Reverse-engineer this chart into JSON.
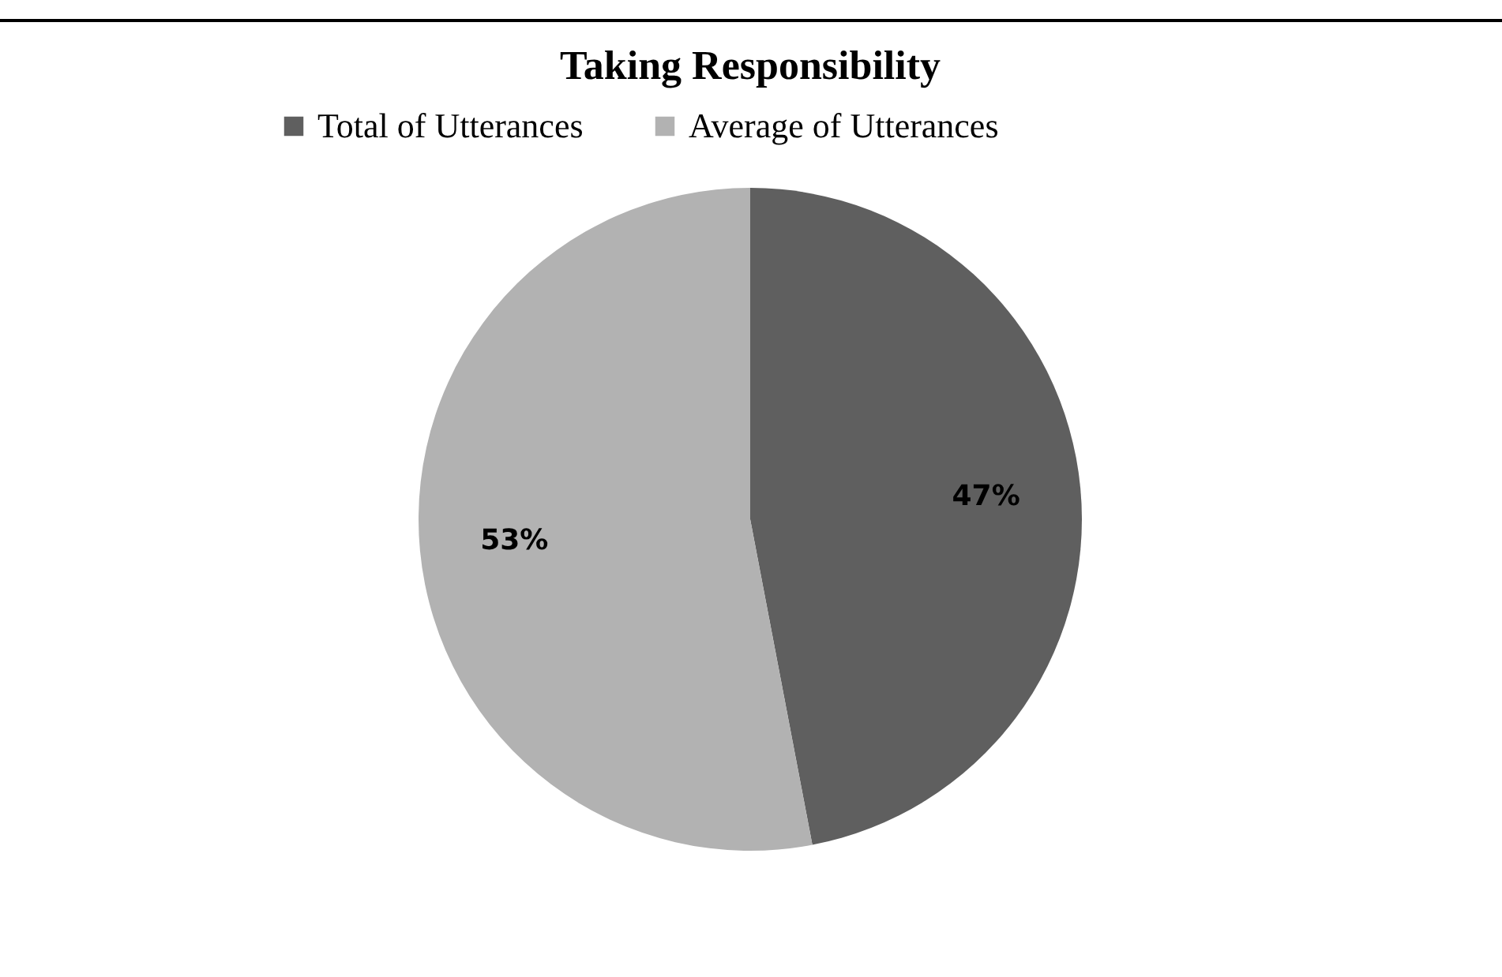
{
  "chart_data": {
    "type": "pie",
    "title": "Taking Responsibility",
    "categories": [
      "Total of Utterances",
      "Average of Utterances"
    ],
    "values": [
      47,
      53
    ],
    "colors": [
      "#5f5f5f",
      "#b2b2b2"
    ],
    "value_labels": [
      "47%",
      "53%"
    ],
    "legend": "top"
  }
}
